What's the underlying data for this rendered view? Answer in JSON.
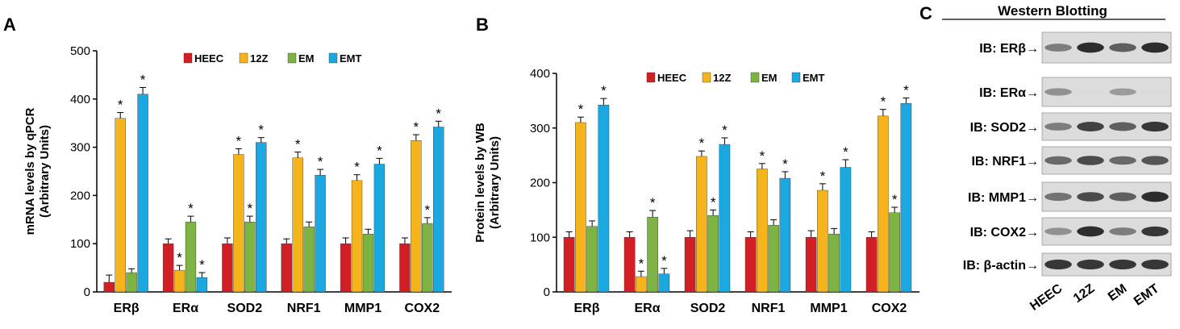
{
  "colors": {
    "HEEC": "#d21f26",
    "12Z": "#f5b41c",
    "EM": "#7cb342",
    "EMT": "#1ba8e0"
  },
  "panels": {
    "a": "A",
    "b": "B",
    "c": "C"
  },
  "chart_data": [
    {
      "type": "bar",
      "panel": "A",
      "ylabel_line1": "mRNA levels by qPCR",
      "ylabel_line2": "(Arbitrary Units)",
      "ylim": [
        0,
        500
      ],
      "yticks": [
        0,
        100,
        200,
        300,
        400,
        500
      ],
      "legend": [
        "HEEC",
        "12Z",
        "EM",
        "EMT"
      ],
      "categories": [
        "ERβ",
        "ERα",
        "SOD2",
        "NRF1",
        "MMP1",
        "COX2"
      ],
      "series": [
        {
          "name": "HEEC",
          "values": [
            20,
            100,
            100,
            100,
            100,
            100
          ],
          "errors": [
            15,
            10,
            12,
            10,
            12,
            12
          ],
          "sig": [
            false,
            false,
            false,
            false,
            false,
            false
          ]
        },
        {
          "name": "12Z",
          "values": [
            360,
            45,
            285,
            278,
            231,
            314
          ],
          "errors": [
            12,
            10,
            12,
            12,
            12,
            12
          ],
          "sig": [
            true,
            true,
            true,
            true,
            true,
            true
          ]
        },
        {
          "name": "EM",
          "values": [
            40,
            145,
            145,
            135,
            120,
            142
          ],
          "errors": [
            8,
            12,
            12,
            10,
            10,
            12
          ],
          "sig": [
            false,
            true,
            true,
            false,
            false,
            true
          ]
        },
        {
          "name": "EMT",
          "values": [
            410,
            30,
            310,
            242,
            265,
            342
          ],
          "errors": [
            14,
            10,
            10,
            12,
            12,
            12
          ],
          "sig": [
            true,
            true,
            true,
            true,
            true,
            true
          ]
        }
      ]
    },
    {
      "type": "bar",
      "panel": "B",
      "ylabel_line1": "Protein levels by WB",
      "ylabel_line2": "(Arbitrary Units)",
      "ylim": [
        0,
        400
      ],
      "yticks": [
        0,
        100,
        200,
        300,
        400
      ],
      "legend": [
        "HEEC",
        "12Z",
        "EM",
        "EMT"
      ],
      "categories": [
        "ERβ",
        "ERα",
        "SOD2",
        "NRF1",
        "MMP1",
        "COX2"
      ],
      "series": [
        {
          "name": "HEEC",
          "values": [
            100,
            100,
            100,
            100,
            100,
            100
          ],
          "errors": [
            10,
            10,
            12,
            10,
            12,
            10
          ],
          "sig": [
            false,
            false,
            false,
            false,
            false,
            false
          ]
        },
        {
          "name": "12Z",
          "values": [
            310,
            28,
            248,
            225,
            186,
            322
          ],
          "errors": [
            10,
            10,
            10,
            10,
            12,
            12
          ],
          "sig": [
            true,
            true,
            true,
            true,
            true,
            true
          ]
        },
        {
          "name": "EM",
          "values": [
            120,
            137,
            140,
            122,
            106,
            145
          ],
          "errors": [
            10,
            12,
            10,
            10,
            10,
            10
          ],
          "sig": [
            false,
            true,
            true,
            false,
            false,
            true
          ]
        },
        {
          "name": "EMT",
          "values": [
            342,
            33,
            270,
            208,
            228,
            345
          ],
          "errors": [
            12,
            10,
            12,
            12,
            14,
            10
          ],
          "sig": [
            true,
            true,
            true,
            true,
            true,
            true
          ]
        }
      ]
    }
  ],
  "western": {
    "title": "Western Blotting",
    "lanes": [
      "HEEC",
      "12Z",
      "EM",
      "EMT"
    ],
    "rows": [
      {
        "label": "IB: ERβ→",
        "intensity": [
          0.55,
          0.95,
          0.7,
          0.95
        ]
      },
      {
        "label": "IB: ERα→",
        "intensity": [
          0.45,
          0.08,
          0.4,
          0.08
        ]
      },
      {
        "label": "IB: SOD2→",
        "intensity": [
          0.55,
          0.85,
          0.7,
          0.9
        ]
      },
      {
        "label": "IB: NRF1→",
        "intensity": [
          0.65,
          0.8,
          0.65,
          0.75
        ]
      },
      {
        "label": "IB: MMP1→",
        "intensity": [
          0.6,
          0.8,
          0.7,
          0.95
        ]
      },
      {
        "label": "IB: COX2→",
        "intensity": [
          0.45,
          0.95,
          0.55,
          0.9
        ]
      },
      {
        "label": "IB: β-actin→",
        "intensity": [
          0.9,
          0.9,
          0.9,
          0.9
        ]
      }
    ]
  }
}
